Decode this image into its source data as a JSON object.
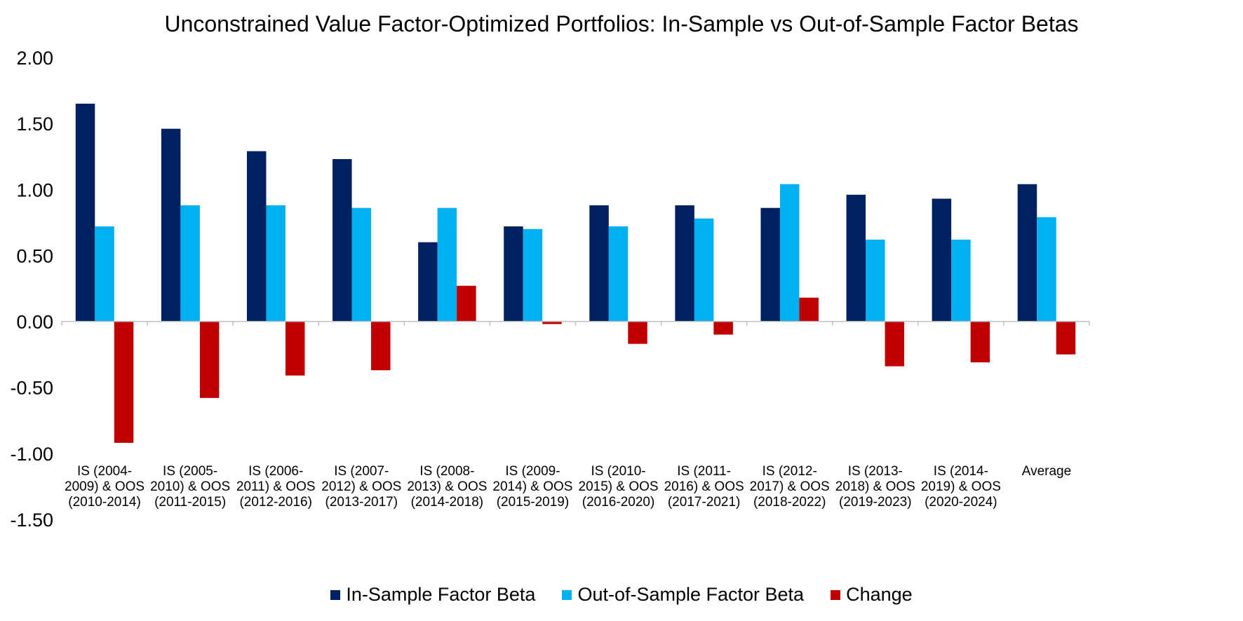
{
  "chart_data": {
    "type": "bar",
    "title": "Unconstrained Value Factor-Optimized Portfolios: In-Sample vs Out-of-Sample Factor Betas",
    "xlabel": "",
    "ylabel": "",
    "ylim": [
      -1.5,
      2.0
    ],
    "yticks": [
      "2.00",
      "1.50",
      "1.00",
      "0.50",
      "0.00",
      "-0.50",
      "-1.00",
      "-1.50"
    ],
    "ytick_values": [
      2.0,
      1.5,
      1.0,
      0.5,
      0.0,
      -0.5,
      -1.0,
      -1.5
    ],
    "legend_position": "bottom",
    "grid": false,
    "categories": [
      [
        "IS (2004-",
        "2009) & OOS",
        "(2010-2014)"
      ],
      [
        "IS (2005-",
        "2010) & OOS",
        "(2011-2015)"
      ],
      [
        "IS (2006-",
        "2011) & OOS",
        "(2012-2016)"
      ],
      [
        "IS (2007-",
        "2012) & OOS",
        "(2013-2017)"
      ],
      [
        "IS (2008-",
        "2013) & OOS",
        "(2014-2018)"
      ],
      [
        "IS (2009-",
        "2014) & OOS",
        "(2015-2019)"
      ],
      [
        "IS (2010-",
        "2015) & OOS",
        "(2016-2020)"
      ],
      [
        "IS (2011-",
        "2016) & OOS",
        "(2017-2021)"
      ],
      [
        "IS (2012-",
        "2017) & OOS",
        "(2018-2022)"
      ],
      [
        "IS (2013-",
        "2018) & OOS",
        "(2019-2023)"
      ],
      [
        "IS (2014-",
        "2019) & OOS",
        "(2020-2024)"
      ],
      [
        "Average"
      ]
    ],
    "series": [
      {
        "name": "In-Sample Factor Beta",
        "color": "#002060",
        "values": [
          1.65,
          1.46,
          1.29,
          1.23,
          0.6,
          0.72,
          0.88,
          0.88,
          0.86,
          0.96,
          0.93,
          1.04
        ]
      },
      {
        "name": "Out-of-Sample Factor Beta",
        "color": "#00B0F0",
        "values": [
          0.72,
          0.88,
          0.88,
          0.86,
          0.86,
          0.7,
          0.72,
          0.78,
          1.04,
          0.62,
          0.62,
          0.79
        ]
      },
      {
        "name": "Change",
        "color": "#C00000",
        "values": [
          -0.92,
          -0.58,
          -0.41,
          -0.37,
          0.27,
          -0.02,
          -0.17,
          -0.1,
          0.18,
          -0.34,
          -0.31,
          -0.25
        ]
      }
    ]
  }
}
